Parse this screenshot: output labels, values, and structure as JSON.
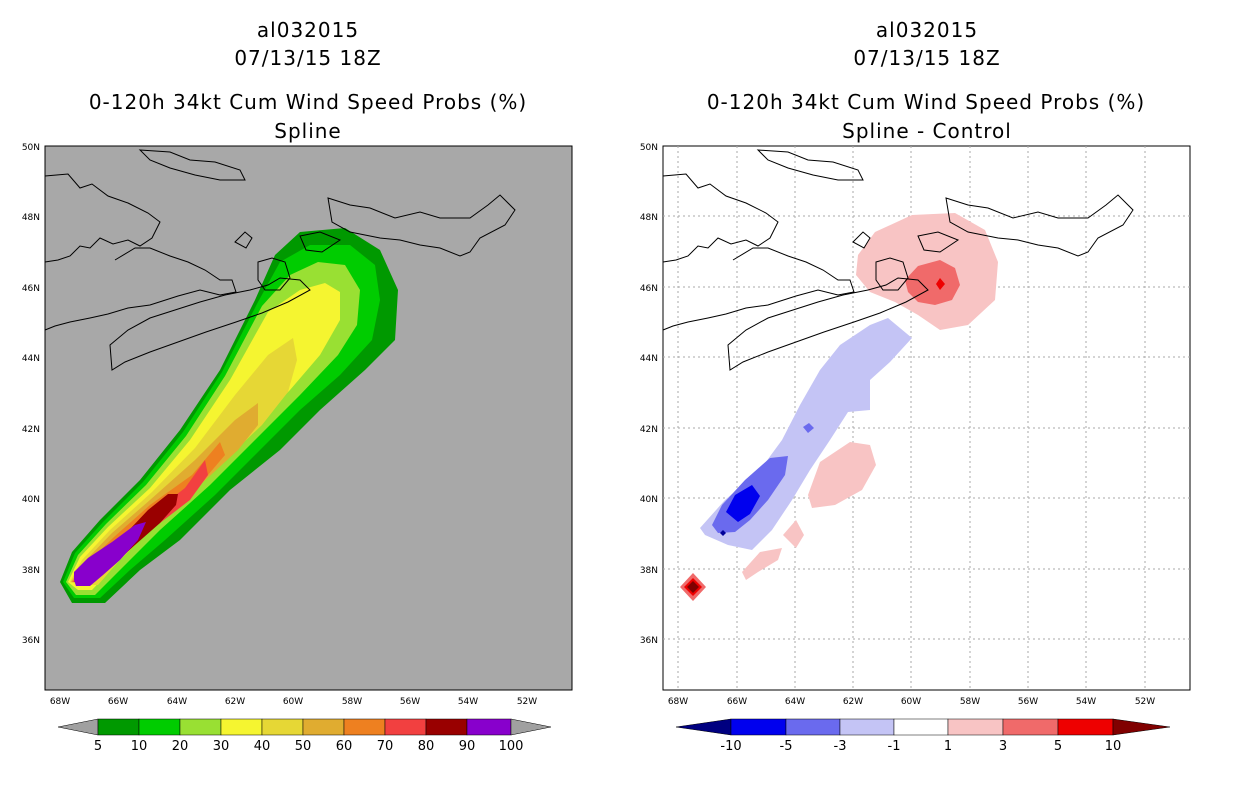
{
  "left": {
    "title_line1": "al032015",
    "title_line2": "07/13/15 18Z",
    "title_line3": "0-120h 34kt Cum Wind Speed Probs (%)",
    "title_line4": "Spline",
    "lat_labels": [
      "50N",
      "48N",
      "46N",
      "44N",
      "42N",
      "40N",
      "38N",
      "36N"
    ],
    "lon_labels": [
      "68W",
      "66W",
      "64W",
      "62W",
      "60W",
      "58W",
      "56W",
      "54W",
      "52W"
    ],
    "legend": {
      "labels": [
        "5",
        "10",
        "20",
        "30",
        "40",
        "50",
        "60",
        "70",
        "80",
        "90",
        "100"
      ],
      "colors": [
        "#009900",
        "#00cc00",
        "#99e033",
        "#f5f530",
        "#e6d735",
        "#e0ac30",
        "#ee8020",
        "#f24040",
        "#990000",
        "#8800cc"
      ],
      "end_color": "#a0a0a0"
    },
    "background_color": "#a8a8a8"
  },
  "right": {
    "title_line1": "al032015",
    "title_line2": "07/13/15 18Z",
    "title_line3": "0-120h 34kt Cum Wind Speed Probs (%)",
    "title_line4": "Spline - Control",
    "lat_labels": [
      "50N",
      "48N",
      "46N",
      "44N",
      "42N",
      "40N",
      "38N",
      "36N"
    ],
    "lon_labels": [
      "68W",
      "66W",
      "64W",
      "62W",
      "60W",
      "58W",
      "56W",
      "54W",
      "52W"
    ],
    "legend": {
      "labels": [
        "-10",
        "-5",
        "-3",
        "-1",
        "1",
        "3",
        "5",
        "10"
      ],
      "colors": [
        "#000099",
        "#0000ee",
        "#6a6aee",
        "#c4c4f5",
        "#ffffff",
        "#f8c4c4",
        "#f06a6a",
        "#ee0000"
      ],
      "end_left": "#000080",
      "end_right": "#800000"
    }
  }
}
